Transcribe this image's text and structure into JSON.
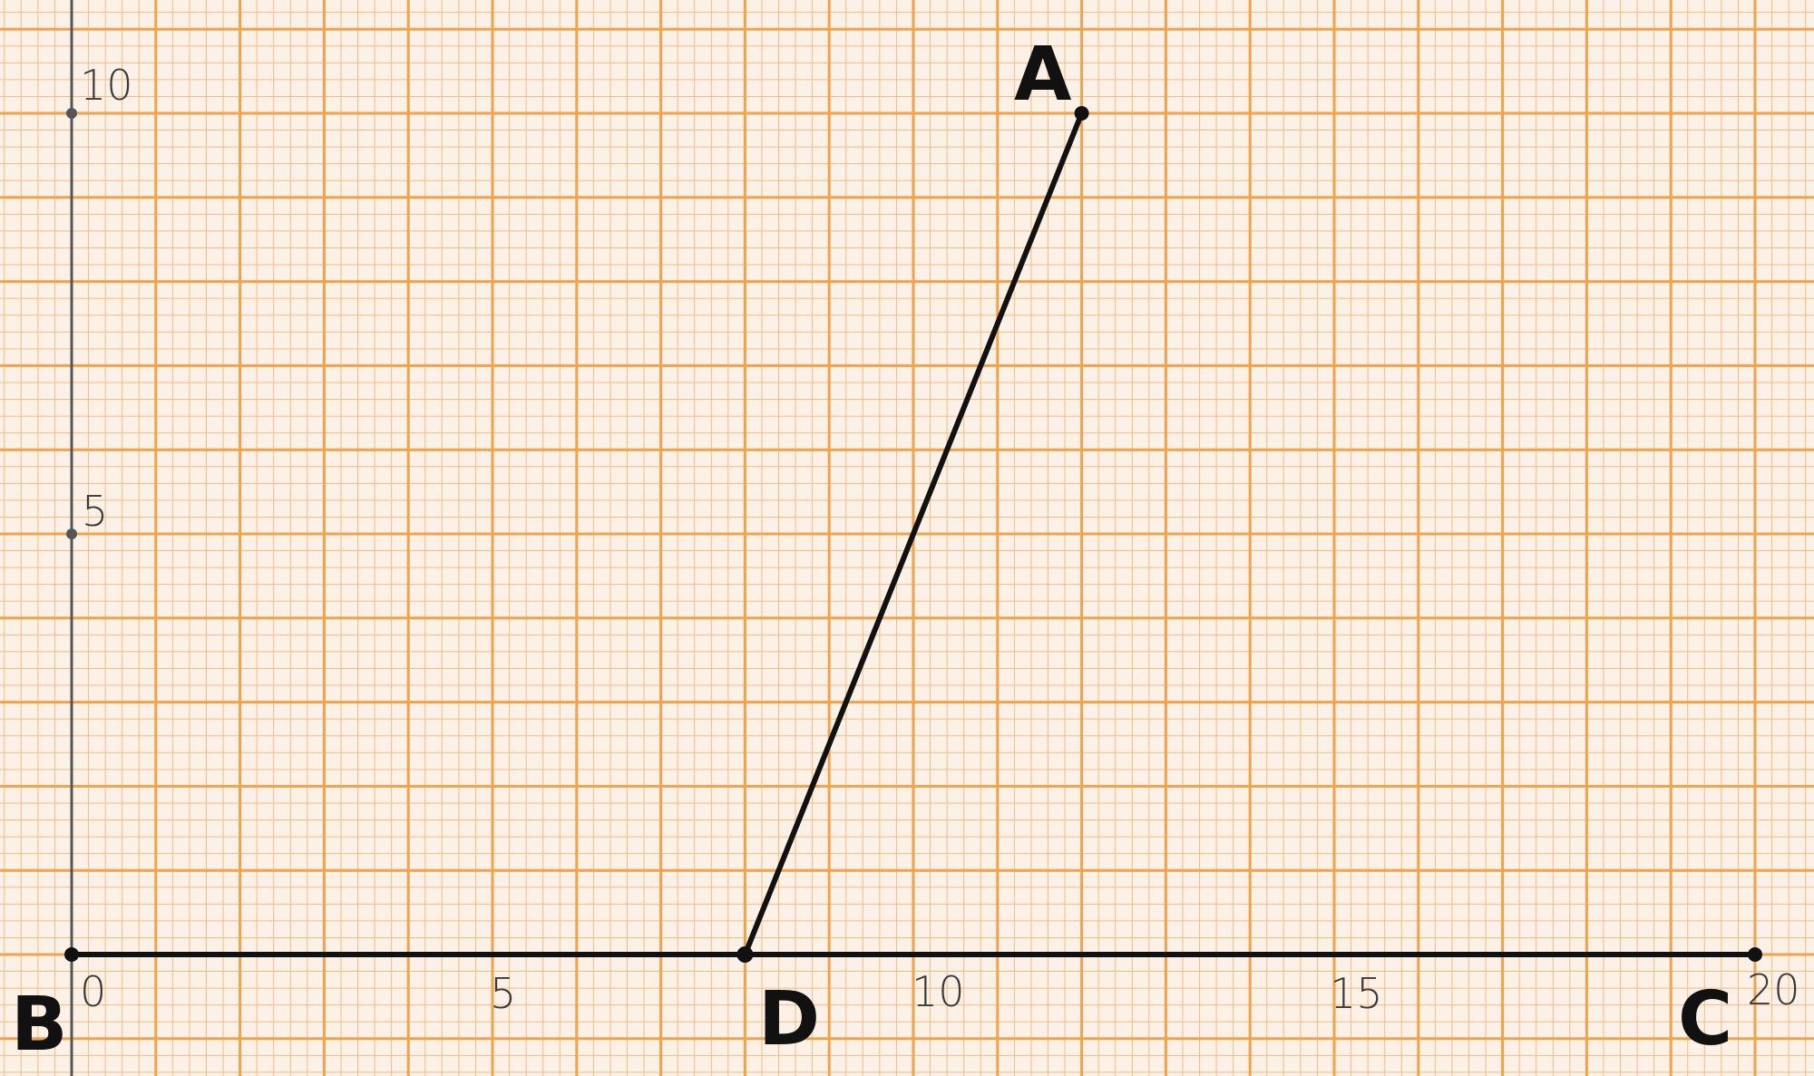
{
  "diagram": {
    "x_range": [
      0,
      20
    ],
    "y_range": [
      0,
      10
    ],
    "x_tick_labels": [
      "0",
      "5",
      "10",
      "15",
      "20"
    ],
    "y_tick_labels": [
      "5",
      "10"
    ],
    "points": {
      "A": {
        "label": "A",
        "x": 12,
        "y": 10
      },
      "B": {
        "label": "B",
        "x": 0,
        "y": 0
      },
      "C": {
        "label": "C",
        "x": 20,
        "y": 0
      },
      "D": {
        "label": "D",
        "x": 8,
        "y": 0
      }
    },
    "segments": [
      [
        "B",
        "C"
      ],
      [
        "D",
        "A"
      ]
    ],
    "colors": {
      "paper": "#fbf1e6",
      "grid_major": "#f2a24a",
      "grid_minor": "#f5bb80",
      "ink": "#111111",
      "axis": "#555555"
    }
  }
}
